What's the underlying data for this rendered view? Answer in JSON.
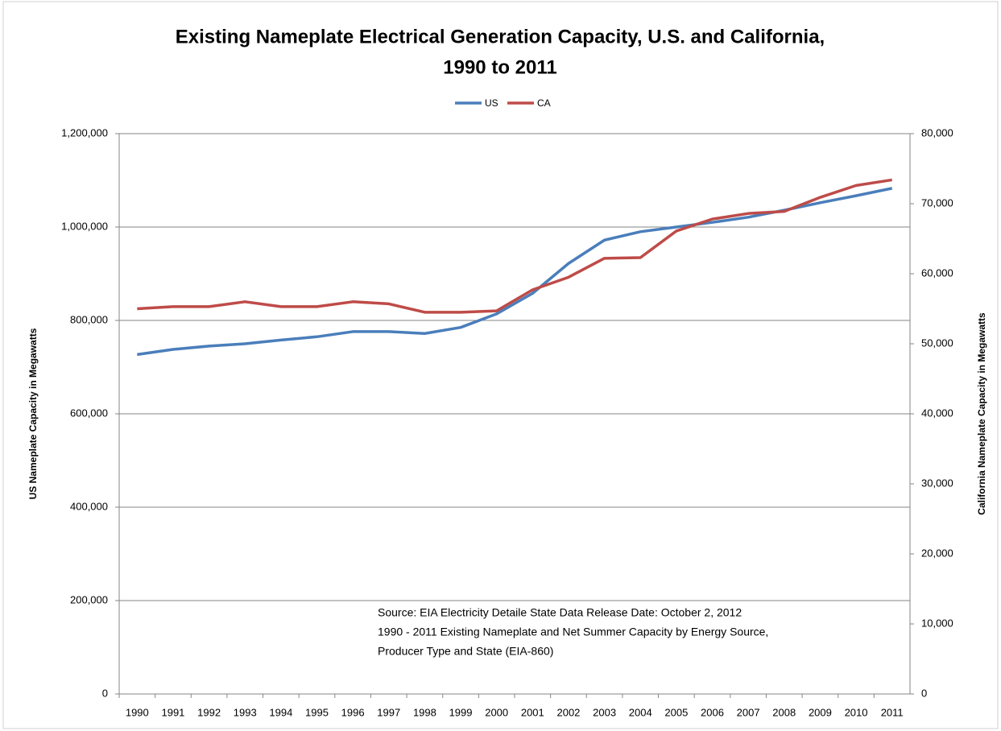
{
  "chart_data": {
    "type": "line",
    "title": [
      "Existing Nameplate Electrical Generation Capacity, U.S. and California,",
      "1990 to 2011"
    ],
    "categories": [
      "1990",
      "1991",
      "1992",
      "1993",
      "1994",
      "1995",
      "1996",
      "1997",
      "1998",
      "1999",
      "2000",
      "2001",
      "2002",
      "2003",
      "2004",
      "2005",
      "2006",
      "2007",
      "2008",
      "2009",
      "2010",
      "2011"
    ],
    "series": [
      {
        "name": "US",
        "color": "#4a7ebb",
        "values": [
          727000,
          738000,
          745000,
          750000,
          758000,
          765000,
          776000,
          776000,
          772000,
          785000,
          814000,
          858000,
          922000,
          972000,
          990000,
          1000000,
          1010000,
          1021000,
          1036000,
          1052000,
          1067000,
          1083000
        ]
      },
      {
        "name": "CA",
        "color": "#be4b48",
        "axis": "y2",
        "values": [
          55000,
          55300,
          55300,
          56000,
          55300,
          55300,
          56000,
          55700,
          54500,
          54500,
          54700,
          57700,
          59500,
          62200,
          62300,
          66100,
          67800,
          68600,
          68900,
          70900,
          72600,
          73400
        ]
      }
    ],
    "ylabel": "US Nameplate Capacity in Megawatts",
    "y2label": "California Nameplate Capacity in Megawatts",
    "ylim": [
      0,
      1200000
    ],
    "yticks": [
      0,
      {
        "value": 200000,
        "label": "200,000"
      },
      {
        "value": 400000,
        "label": "400,000"
      },
      {
        "value": 600000,
        "label": "600,000"
      },
      {
        "value": 800000,
        "label": "800,000"
      },
      {
        "value": 1000000,
        "label": "1,000,000"
      },
      {
        "value": 1200000,
        "label": "1,200,000"
      }
    ],
    "y2lim": [
      0,
      80000
    ],
    "y2ticks": [
      0,
      {
        "value": 10000,
        "label": "10,000"
      },
      {
        "value": 20000,
        "label": "20,000"
      },
      {
        "value": 30000,
        "label": "30,000"
      },
      {
        "value": 40000,
        "label": "40,000"
      },
      {
        "value": 50000,
        "label": "50,000"
      },
      {
        "value": 60000,
        "label": "60,000"
      },
      {
        "value": 70000,
        "label": "70,000"
      },
      {
        "value": 80000,
        "label": "80,000"
      }
    ],
    "grid": true,
    "legend": "top",
    "annotation": [
      "Source: EIA Electricity Detaile State Data Release Date: October 2, 2012",
      "1990 - 2011   Existing Nameplate and Net Summer Capacity by Energy Source,",
      "Producer Type and State (EIA-860)"
    ]
  }
}
